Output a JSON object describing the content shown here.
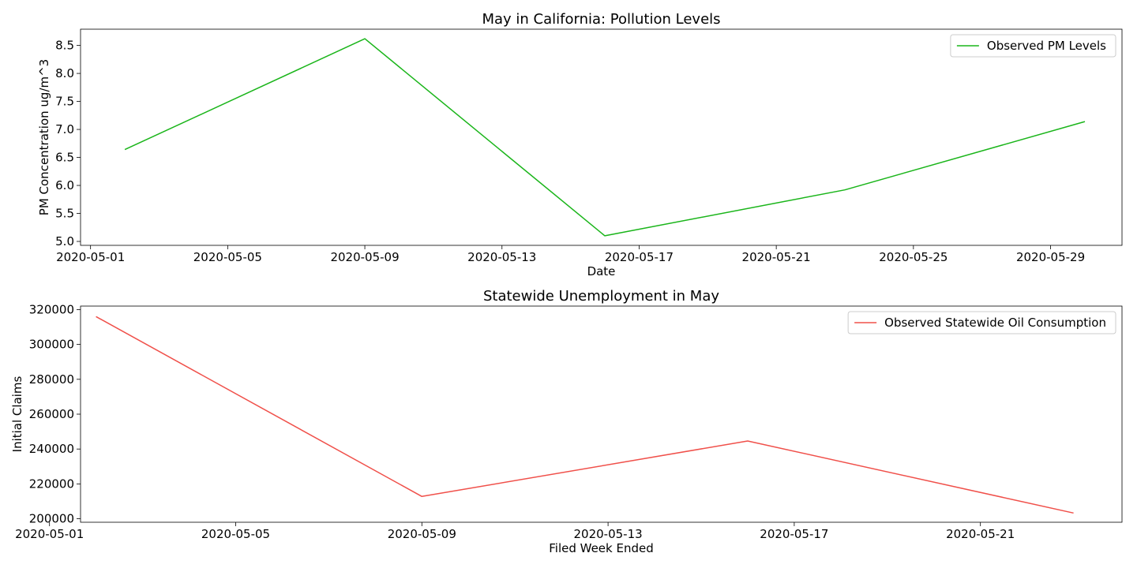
{
  "chart_data": [
    {
      "type": "line",
      "title": "May in California: Pollution Levels",
      "xlabel": "Date",
      "ylabel": "PM Concentration ug/m^3",
      "xlim": [
        "2020-04-30T17:00",
        "2020-05-31T02:00"
      ],
      "ylim": [
        4.93,
        8.79
      ],
      "x_ticks": [
        "2020-05-01",
        "2020-05-05",
        "2020-05-09",
        "2020-05-13",
        "2020-05-17",
        "2020-05-21",
        "2020-05-25",
        "2020-05-29"
      ],
      "y_ticks": [
        "5.0",
        "5.5",
        "6.0",
        "6.5",
        "7.0",
        "7.5",
        "8.0",
        "8.5"
      ],
      "legend": "top-right",
      "grid": false,
      "series": [
        {
          "name": "Observed PM Levels",
          "color": "#1ab51a",
          "x": [
            "2020-05-02",
            "2020-05-09",
            "2020-05-16",
            "2020-05-23",
            "2020-05-30"
          ],
          "y": [
            6.64,
            8.62,
            5.1,
            5.92,
            7.14
          ]
        }
      ]
    },
    {
      "type": "line",
      "title": "Statewide Unemployment in May",
      "xlabel": "Filed Week Ended",
      "ylabel": "Initial Claims",
      "xlim": [
        "2020-05-01T16:00",
        "2020-05-24T01:00"
      ],
      "ylim": [
        198000,
        322000
      ],
      "x_ticks": [
        "2020-05-01",
        "2020-05-05",
        "2020-05-09",
        "2020-05-13",
        "2020-05-17",
        "2020-05-21"
      ],
      "y_ticks": [
        "200000",
        "220000",
        "240000",
        "260000",
        "280000",
        "300000",
        "320000"
      ],
      "legend": "top-right",
      "grid": false,
      "series": [
        {
          "name": "Observed Statewide Oil Consumption",
          "color": "#f0504a",
          "x": [
            "2020-05-02",
            "2020-05-09",
            "2020-05-16",
            "2020-05-23"
          ],
          "y": [
            316000,
            212800,
            244600,
            203300
          ]
        }
      ]
    }
  ]
}
